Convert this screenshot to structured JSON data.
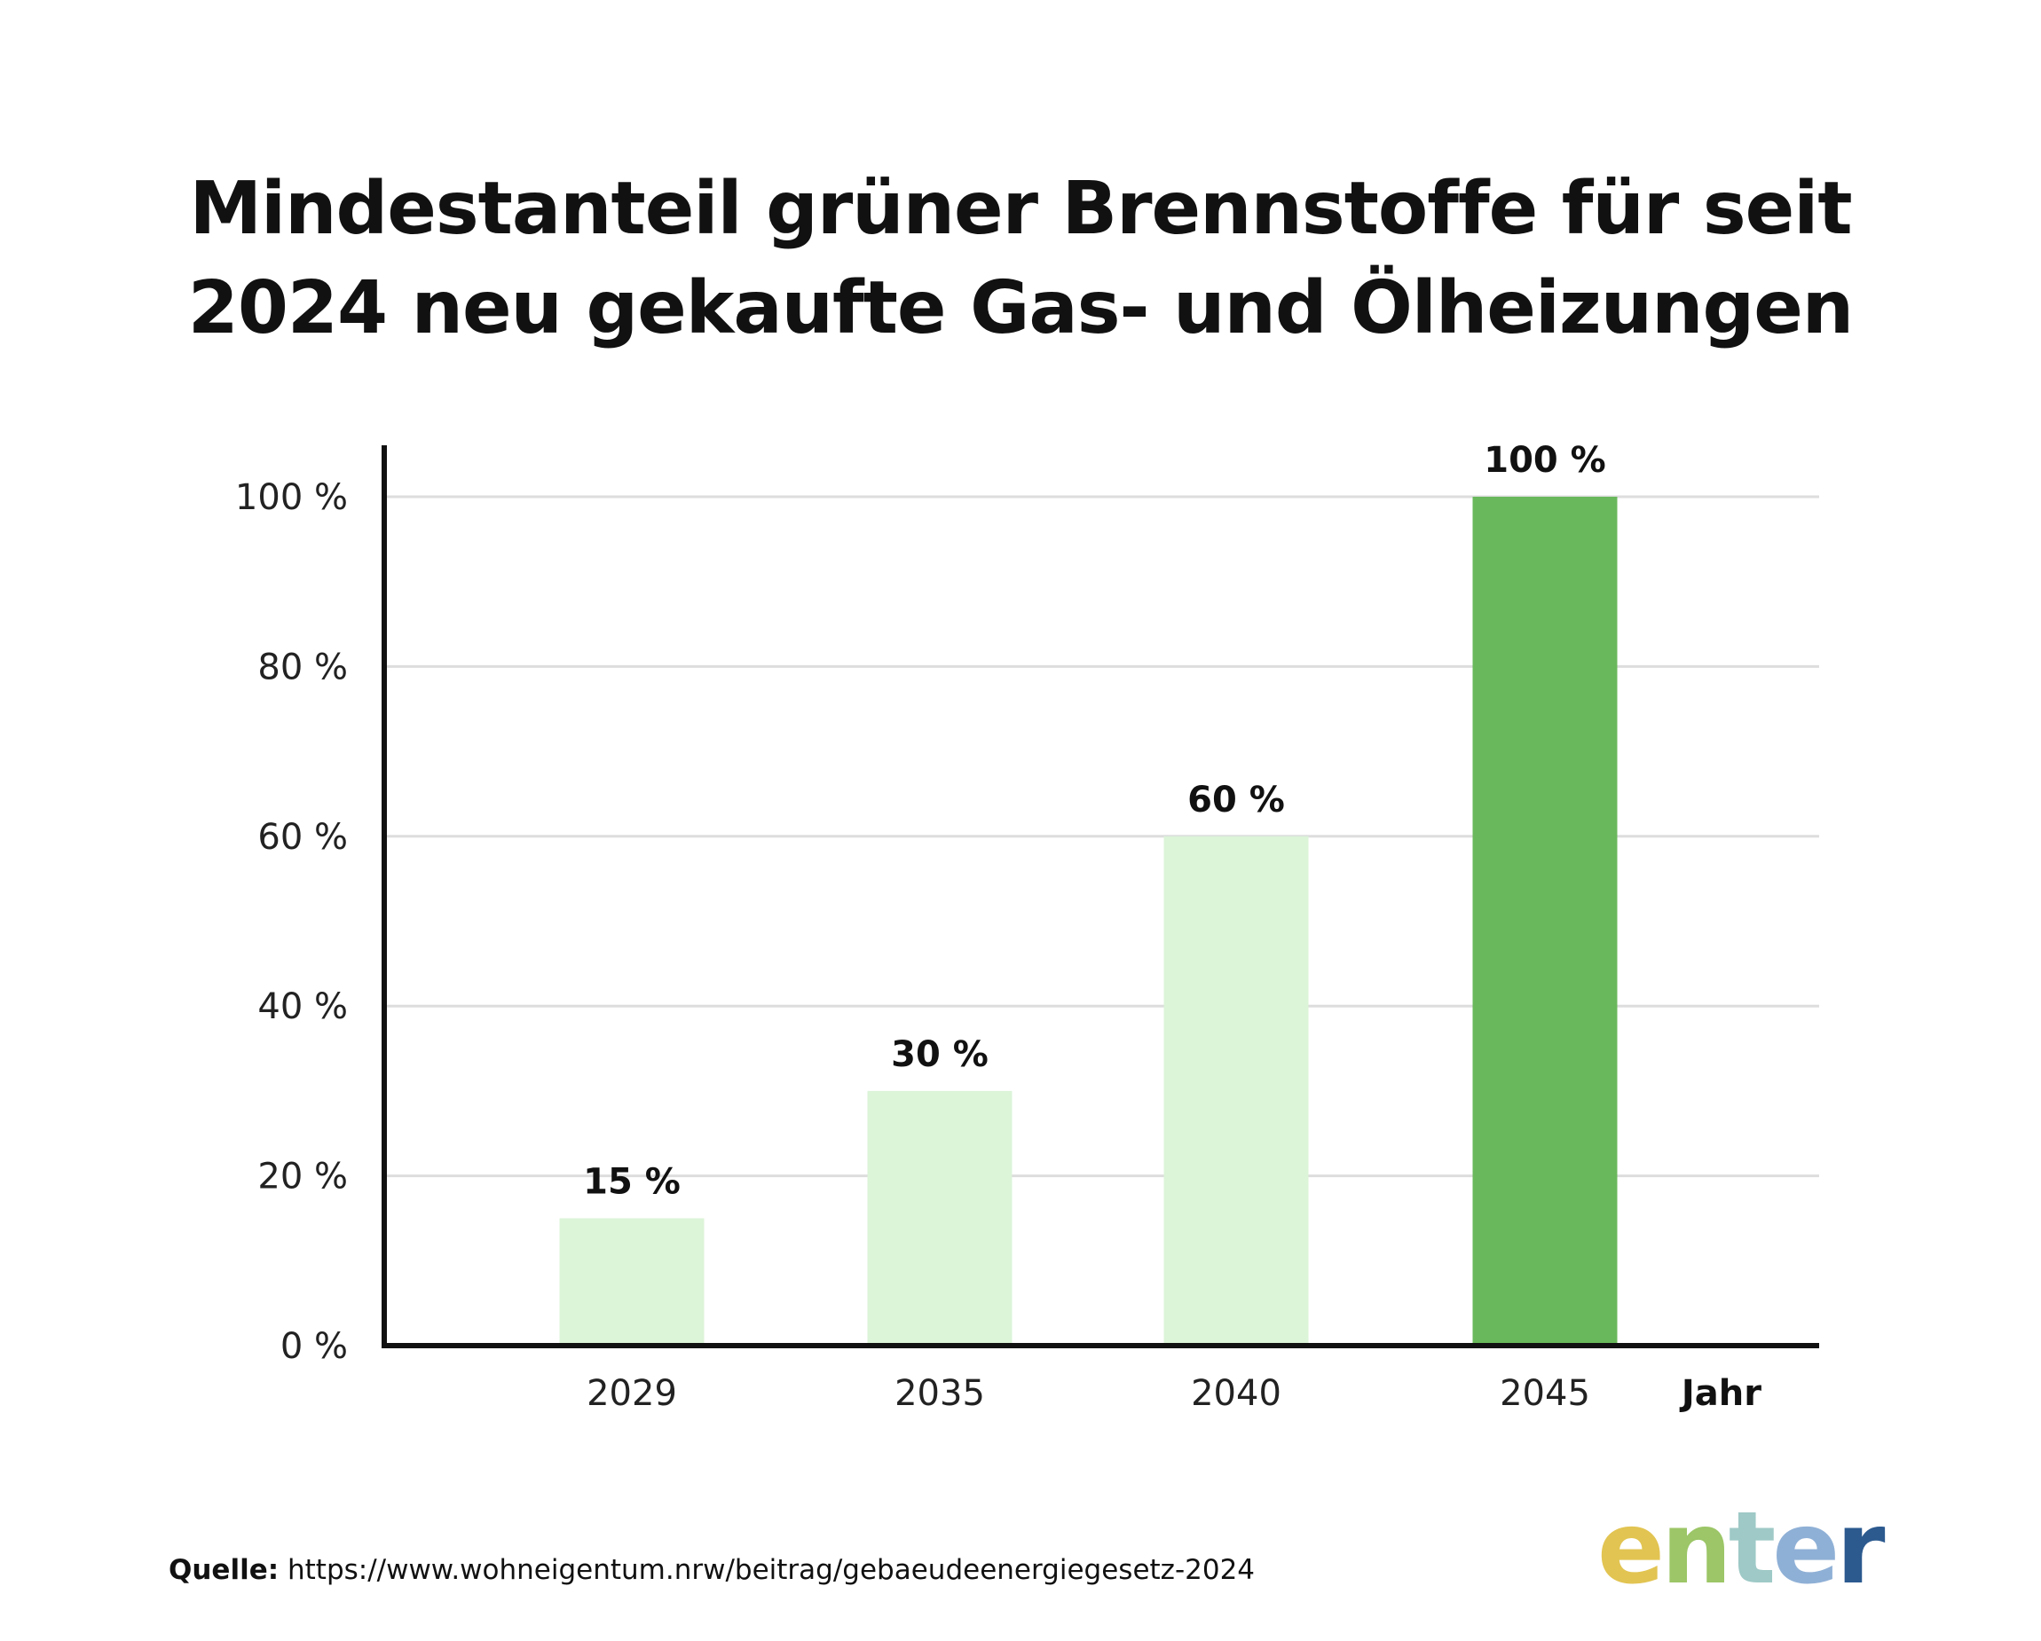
{
  "title_line1": "Mindestanteil grüner Brennstoffe für seit",
  "title_line2": "2024 neu gekaufte Gas- und Ölheizungen",
  "source_label": "Quelle:",
  "source_url": "https://www.wohneigentum.nrw/beitrag/gebaeudeenergiegesetz-2024",
  "logo": {
    "letters": [
      "e",
      "n",
      "t",
      "e",
      "r"
    ],
    "colors": [
      "#e2c452",
      "#9cc667",
      "#9ec9c6",
      "#8fb0d6",
      "#2c5a8f"
    ]
  },
  "colors": {
    "bar_light": "#dcf4d8",
    "bar_highlight": "#69b85b",
    "grid": "#dddddd",
    "axis": "#111111"
  },
  "chart_data": {
    "type": "bar",
    "categories": [
      "2029",
      "2035",
      "2040",
      "2045"
    ],
    "values": [
      15,
      30,
      60,
      100
    ],
    "value_labels": [
      "15 %",
      "30 %",
      "60 %",
      "100 %"
    ],
    "highlight_index": 3,
    "xlabel": "Jahr",
    "ylabel": "",
    "ylim": [
      0,
      100
    ],
    "yticks": [
      0,
      20,
      40,
      60,
      80,
      100
    ],
    "ytick_labels": [
      "0 %",
      "20 %",
      "40 %",
      "60 %",
      "80 %",
      "100 %"
    ],
    "grid": true,
    "legend": "none"
  }
}
